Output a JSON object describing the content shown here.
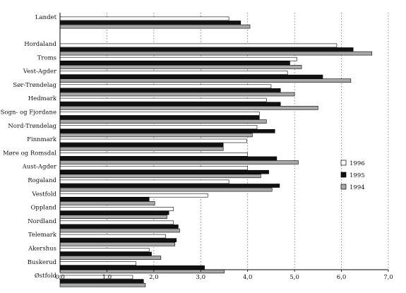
{
  "chart_data": {
    "type": "bar",
    "orientation": "horizontal",
    "title": "",
    "xlabel": "",
    "ylabel": "",
    "xlim": [
      0,
      7
    ],
    "xticks": [
      "0,0",
      "1,0",
      "2,0",
      "3,0",
      "4,0",
      "5,0",
      "6,0",
      "7,0"
    ],
    "grid": "vertical-dotted",
    "legend_position": "right",
    "categories": [
      "Landet",
      "Hordaland",
      "Troms",
      "Vest-Agder",
      "Sør-Trøndelag",
      "Hedmark",
      "Sogn- og Fjordane",
      "Nord-Trøndelag",
      "Finnmark",
      "Møre og Romsdal",
      "Aust-Agder",
      "Rogaland",
      "Vestfold",
      "Oppland",
      "Nordland",
      "Telemark",
      "Akershus",
      "Buskerud",
      "Østfold"
    ],
    "series": [
      {
        "name": "1996",
        "color": "#ffffff",
        "values": [
          3.6,
          5.9,
          5.05,
          4.85,
          4.5,
          4.4,
          4.25,
          4.2,
          3.98,
          4.0,
          4.0,
          3.6,
          3.15,
          2.42,
          2.42,
          2.25,
          1.9,
          1.62,
          1.55
        ]
      },
      {
        "name": "1995",
        "color": "#111111",
        "values": [
          3.85,
          6.25,
          4.9,
          5.6,
          4.7,
          4.7,
          4.25,
          4.58,
          3.48,
          4.62,
          4.45,
          4.68,
          1.9,
          2.32,
          2.52,
          2.48,
          1.95,
          3.08,
          1.78
        ]
      },
      {
        "name": "1994",
        "color": "#a8a8a8",
        "values": [
          4.05,
          6.65,
          5.15,
          6.2,
          5.0,
          5.5,
          4.4,
          4.1,
          3.48,
          5.08,
          4.28,
          4.52,
          2.02,
          2.28,
          2.55,
          2.45,
          2.15,
          3.5,
          1.82
        ]
      }
    ]
  }
}
